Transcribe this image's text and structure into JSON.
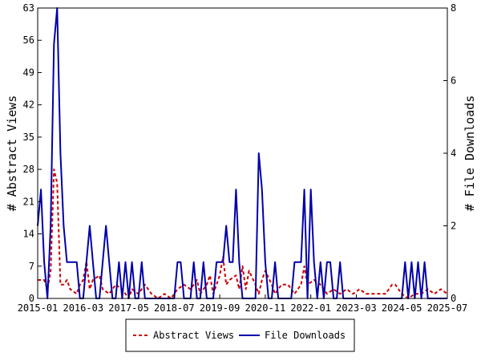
{
  "chart_data": {
    "type": "line",
    "x_tick_labels": [
      "2015-01",
      "2016-03",
      "2017-05",
      "2018-07",
      "2019-09",
      "2020-11",
      "2022-01",
      "2023-03",
      "2024-05",
      "2025-07"
    ],
    "x_range": [
      "2015-01",
      "2025-07"
    ],
    "left_axis": {
      "label": "# Abstract Views",
      "ylim": [
        0,
        63
      ],
      "ticks": [
        0,
        7,
        14,
        21,
        28,
        35,
        42,
        49,
        56,
        63
      ]
    },
    "right_axis": {
      "label": "# File Downloads",
      "ylim": [
        0,
        8
      ],
      "ticks": [
        0,
        2,
        4,
        6,
        8
      ]
    },
    "grid": false,
    "legend_position": "bottom",
    "series": [
      {
        "name": "Abstract Views",
        "axis": "left",
        "color": "#cc0000",
        "style": "dashed",
        "points": [
          [
            "2015-01",
            4
          ],
          [
            "2015-03",
            4
          ],
          [
            "2015-04",
            2
          ],
          [
            "2015-05",
            6
          ],
          [
            "2015-06",
            28
          ],
          [
            "2015-07",
            25
          ],
          [
            "2015-08",
            3
          ],
          [
            "2015-09",
            3
          ],
          [
            "2015-10",
            4
          ],
          [
            "2015-11",
            2
          ],
          [
            "2016-01",
            1
          ],
          [
            "2016-02",
            3
          ],
          [
            "2016-03",
            4
          ],
          [
            "2016-04",
            8
          ],
          [
            "2016-05",
            2
          ],
          [
            "2016-06",
            4
          ],
          [
            "2016-08",
            5
          ],
          [
            "2016-09",
            2
          ],
          [
            "2016-11",
            1
          ],
          [
            "2017-01",
            3
          ],
          [
            "2017-03",
            2
          ],
          [
            "2017-05",
            0
          ],
          [
            "2017-06",
            2
          ],
          [
            "2017-08",
            1
          ],
          [
            "2017-10",
            3
          ],
          [
            "2017-12",
            1
          ],
          [
            "2018-02",
            0
          ],
          [
            "2018-04",
            1
          ],
          [
            "2018-06",
            0
          ],
          [
            "2018-08",
            2
          ],
          [
            "2018-10",
            3
          ],
          [
            "2018-12",
            2
          ],
          [
            "2019-02",
            4
          ],
          [
            "2019-03",
            1
          ],
          [
            "2019-05",
            3
          ],
          [
            "2019-06",
            5
          ],
          [
            "2019-07",
            1
          ],
          [
            "2019-09",
            5
          ],
          [
            "2019-10",
            9
          ],
          [
            "2019-11",
            3
          ],
          [
            "2019-12",
            4
          ],
          [
            "2020-02",
            5
          ],
          [
            "2020-03",
            2
          ],
          [
            "2020-04",
            7
          ],
          [
            "2020-05",
            2
          ],
          [
            "2020-06",
            6
          ],
          [
            "2020-08",
            3
          ],
          [
            "2020-09",
            1
          ],
          [
            "2020-10",
            4
          ],
          [
            "2020-11",
            6
          ],
          [
            "2021-01",
            3
          ],
          [
            "2021-02",
            1
          ],
          [
            "2021-04",
            3
          ],
          [
            "2021-06",
            3
          ],
          [
            "2021-08",
            1
          ],
          [
            "2021-10",
            3
          ],
          [
            "2021-11",
            7
          ],
          [
            "2021-12",
            3
          ],
          [
            "2022-02",
            4
          ],
          [
            "2022-04",
            3
          ],
          [
            "2022-06",
            1
          ],
          [
            "2022-08",
            2
          ],
          [
            "2022-10",
            1
          ],
          [
            "2022-12",
            2
          ],
          [
            "2023-02",
            1
          ],
          [
            "2023-04",
            2
          ],
          [
            "2023-06",
            1
          ],
          [
            "2023-08",
            1
          ],
          [
            "2023-10",
            1
          ],
          [
            "2023-12",
            1
          ],
          [
            "2024-02",
            3
          ],
          [
            "2024-03",
            3
          ],
          [
            "2024-05",
            1
          ],
          [
            "2024-07",
            0
          ],
          [
            "2024-09",
            1
          ],
          [
            "2024-11",
            1
          ],
          [
            "2025-01",
            2
          ],
          [
            "2025-03",
            1
          ],
          [
            "2025-05",
            2
          ],
          [
            "2025-07",
            1
          ]
        ]
      },
      {
        "name": "File Downloads",
        "axis": "right",
        "color": "#0000aa",
        "style": "solid",
        "points": [
          [
            "2015-01",
            2
          ],
          [
            "2015-02",
            3
          ],
          [
            "2015-03",
            1
          ],
          [
            "2015-04",
            0
          ],
          [
            "2015-05",
            2
          ],
          [
            "2015-06",
            7
          ],
          [
            "2015-07",
            8
          ],
          [
            "2015-08",
            4
          ],
          [
            "2015-09",
            2
          ],
          [
            "2015-10",
            1
          ],
          [
            "2015-11",
            1
          ],
          [
            "2015-12",
            1
          ],
          [
            "2016-01",
            1
          ],
          [
            "2016-02",
            0
          ],
          [
            "2016-03",
            0
          ],
          [
            "2016-04",
            1
          ],
          [
            "2016-05",
            2
          ],
          [
            "2016-06",
            1
          ],
          [
            "2016-07",
            0
          ],
          [
            "2016-08",
            0
          ],
          [
            "2016-09",
            1
          ],
          [
            "2016-10",
            2
          ],
          [
            "2016-11",
            1
          ],
          [
            "2016-12",
            0
          ],
          [
            "2017-01",
            0
          ],
          [
            "2017-02",
            1
          ],
          [
            "2017-03",
            0
          ],
          [
            "2017-04",
            1
          ],
          [
            "2017-05",
            0
          ],
          [
            "2017-06",
            1
          ],
          [
            "2017-07",
            0
          ],
          [
            "2017-08",
            0
          ],
          [
            "2017-09",
            1
          ],
          [
            "2017-10",
            0
          ],
          [
            "2017-11",
            0
          ],
          [
            "2017-12",
            0
          ],
          [
            "2018-01",
            0
          ],
          [
            "2018-02",
            0
          ],
          [
            "2018-03",
            0
          ],
          [
            "2018-04",
            0
          ],
          [
            "2018-05",
            0
          ],
          [
            "2018-06",
            0
          ],
          [
            "2018-07",
            0
          ],
          [
            "2018-08",
            1
          ],
          [
            "2018-09",
            1
          ],
          [
            "2018-10",
            0
          ],
          [
            "2018-11",
            0
          ],
          [
            "2018-12",
            0
          ],
          [
            "2019-01",
            1
          ],
          [
            "2019-02",
            0
          ],
          [
            "2019-03",
            0
          ],
          [
            "2019-04",
            1
          ],
          [
            "2019-05",
            0
          ],
          [
            "2019-06",
            0
          ],
          [
            "2019-07",
            0
          ],
          [
            "2019-08",
            1
          ],
          [
            "2019-09",
            1
          ],
          [
            "2019-10",
            1
          ],
          [
            "2019-11",
            2
          ],
          [
            "2019-12",
            1
          ],
          [
            "2020-01",
            1
          ],
          [
            "2020-02",
            3
          ],
          [
            "2020-03",
            1
          ],
          [
            "2020-04",
            0
          ],
          [
            "2020-05",
            0
          ],
          [
            "2020-06",
            0
          ],
          [
            "2020-07",
            0
          ],
          [
            "2020-08",
            0
          ],
          [
            "2020-09",
            4
          ],
          [
            "2020-10",
            3
          ],
          [
            "2020-11",
            1
          ],
          [
            "2020-12",
            0
          ],
          [
            "2021-01",
            0
          ],
          [
            "2021-02",
            1
          ],
          [
            "2021-03",
            0
          ],
          [
            "2021-04",
            0
          ],
          [
            "2021-05",
            0
          ],
          [
            "2021-06",
            0
          ],
          [
            "2021-07",
            0
          ],
          [
            "2021-08",
            1
          ],
          [
            "2021-09",
            1
          ],
          [
            "2021-10",
            1
          ],
          [
            "2021-11",
            3
          ],
          [
            "2021-12",
            0
          ],
          [
            "2022-01",
            3
          ],
          [
            "2022-02",
            1
          ],
          [
            "2022-03",
            0
          ],
          [
            "2022-04",
            1
          ],
          [
            "2022-05",
            0
          ],
          [
            "2022-06",
            1
          ],
          [
            "2022-07",
            1
          ],
          [
            "2022-08",
            0
          ],
          [
            "2022-09",
            0
          ],
          [
            "2022-10",
            1
          ],
          [
            "2022-11",
            0
          ],
          [
            "2022-12",
            0
          ],
          [
            "2023-01",
            0
          ],
          [
            "2023-02",
            0
          ],
          [
            "2023-03",
            0
          ],
          [
            "2023-04",
            0
          ],
          [
            "2023-05",
            0
          ],
          [
            "2023-06",
            0
          ],
          [
            "2023-07",
            0
          ],
          [
            "2023-08",
            0
          ],
          [
            "2023-09",
            0
          ],
          [
            "2023-10",
            0
          ],
          [
            "2023-11",
            0
          ],
          [
            "2023-12",
            0
          ],
          [
            "2024-01",
            0
          ],
          [
            "2024-02",
            0
          ],
          [
            "2024-03",
            0
          ],
          [
            "2024-04",
            0
          ],
          [
            "2024-05",
            0
          ],
          [
            "2024-06",
            1
          ],
          [
            "2024-07",
            0
          ],
          [
            "2024-08",
            1
          ],
          [
            "2024-09",
            0
          ],
          [
            "2024-10",
            1
          ],
          [
            "2024-11",
            0
          ],
          [
            "2024-12",
            1
          ],
          [
            "2025-01",
            0
          ],
          [
            "2025-02",
            0
          ],
          [
            "2025-03",
            0
          ],
          [
            "2025-04",
            0
          ],
          [
            "2025-05",
            0
          ],
          [
            "2025-06",
            0
          ],
          [
            "2025-07",
            0
          ]
        ]
      }
    ]
  }
}
